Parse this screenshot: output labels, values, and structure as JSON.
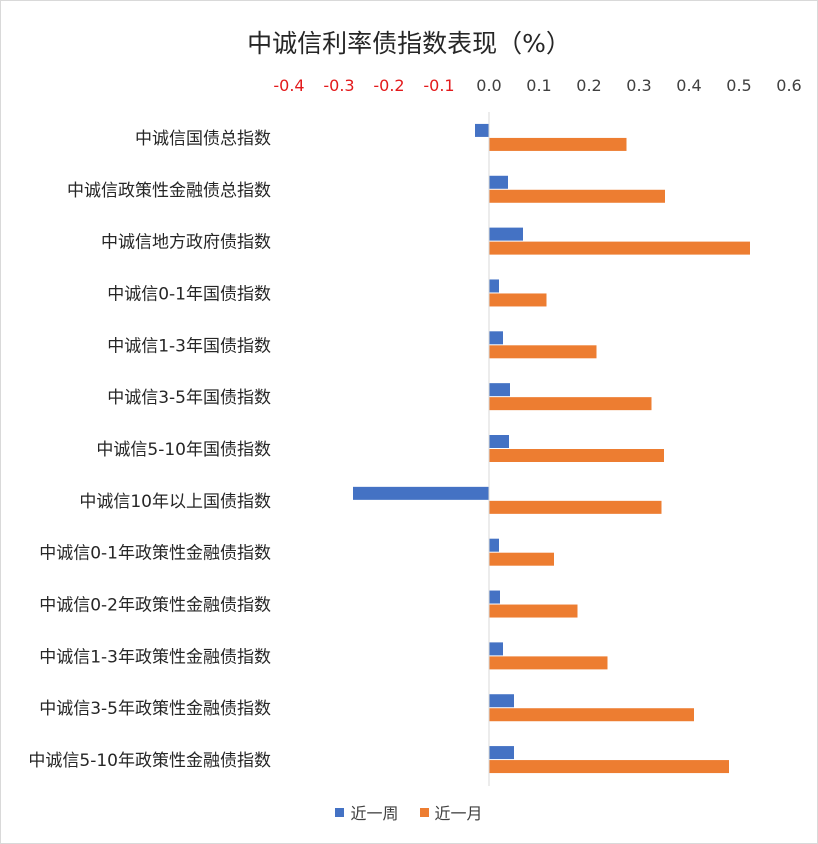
{
  "chart_data": {
    "type": "bar",
    "orientation": "horizontal",
    "title": "中诚信利率债指数表现（%）",
    "xlim": [
      -0.4,
      0.6
    ],
    "xticks": [
      "-0.4",
      "-0.3",
      "-0.2",
      "-0.1",
      "0.0",
      "0.1",
      "0.2",
      "0.3",
      "0.4",
      "0.5",
      "0.6"
    ],
    "negative_tick_color": "#e31a1c",
    "grid": false,
    "legend_position": "bottom",
    "categories": [
      "中诚信国债总指数",
      "中诚信政策性金融债总指数",
      "中诚信地方政府债指数",
      "中诚信0-1年国债指数",
      "中诚信1-3年国债指数",
      "中诚信3-5年国债指数",
      "中诚信5-10年国债指数",
      "中诚信10年以上国债指数",
      "中诚信0-1年政策性金融债指数",
      "中诚信0-2年政策性金融债指数",
      "中诚信1-3年政策性金融债指数",
      "中诚信3-5年政策性金融债指数",
      "中诚信5-10年政策性金融债指数"
    ],
    "series": [
      {
        "name": "近一周",
        "color": "#4472c4",
        "values": [
          -0.028,
          0.038,
          0.068,
          0.02,
          0.028,
          0.042,
          0.04,
          -0.272,
          0.02,
          0.022,
          0.028,
          0.05,
          0.05
        ]
      },
      {
        "name": "近一月",
        "color": "#ed7d31",
        "values": [
          0.275,
          0.352,
          0.522,
          0.115,
          0.215,
          0.325,
          0.35,
          0.345,
          0.13,
          0.177,
          0.237,
          0.41,
          0.48
        ]
      }
    ]
  }
}
